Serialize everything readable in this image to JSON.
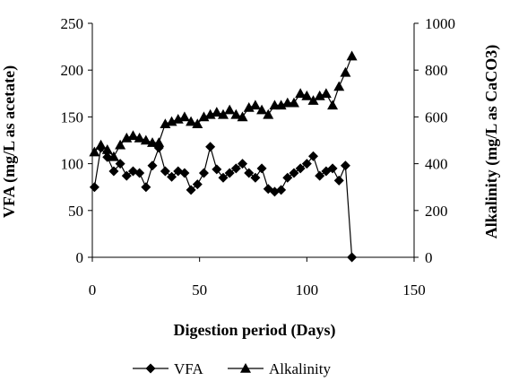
{
  "chart_data": {
    "type": "line",
    "xlabel": "Digestion period (Days)",
    "ylabel_left": "VFA (mg/L as acetate)",
    "ylabel_right": "Alkalinity (mg/L as CaCO3)",
    "xlim": [
      0,
      150
    ],
    "ylim_left": [
      0,
      250
    ],
    "ylim_right": [
      0,
      1000
    ],
    "x_ticks": [
      0,
      50,
      100,
      150
    ],
    "y_left_ticks": [
      0,
      50,
      100,
      150,
      200,
      250
    ],
    "y_right_ticks": [
      0,
      200,
      400,
      600,
      800,
      1000
    ],
    "grid": false,
    "legend_position": "bottom",
    "series": [
      {
        "name": "VFA",
        "axis": "left",
        "marker": "diamond",
        "x": [
          1,
          4,
          7,
          10,
          13,
          16,
          19,
          22,
          25,
          28,
          31,
          34,
          37,
          40,
          43,
          46,
          49,
          52,
          55,
          58,
          61,
          64,
          67,
          70,
          73,
          76,
          79,
          82,
          85,
          88,
          91,
          94,
          97,
          100,
          103,
          106,
          109,
          112,
          115,
          118,
          121
        ],
        "y": [
          75,
          117,
          107,
          92,
          100,
          87,
          92,
          90,
          75,
          98,
          117,
          92,
          86,
          92,
          90,
          72,
          78,
          90,
          118,
          94,
          85,
          90,
          95,
          100,
          90,
          85,
          95,
          73,
          70,
          72,
          85,
          90,
          95,
          100,
          108,
          87,
          92,
          95,
          82,
          98,
          0
        ]
      },
      {
        "name": "Alkalinity",
        "axis": "right",
        "marker": "triangle",
        "x": [
          1,
          4,
          7,
          10,
          13,
          16,
          19,
          22,
          25,
          28,
          31,
          34,
          37,
          40,
          43,
          46,
          49,
          52,
          55,
          58,
          61,
          64,
          67,
          70,
          73,
          76,
          79,
          82,
          85,
          88,
          91,
          94,
          97,
          100,
          103,
          106,
          109,
          112,
          115,
          118,
          121
        ],
        "y": [
          450,
          480,
          460,
          430,
          480,
          510,
          520,
          510,
          500,
          490,
          490,
          570,
          580,
          590,
          600,
          580,
          570,
          600,
          610,
          620,
          610,
          630,
          610,
          600,
          640,
          650,
          630,
          610,
          650,
          650,
          660,
          660,
          700,
          690,
          670,
          690,
          700,
          650,
          730,
          790,
          860
        ]
      }
    ]
  }
}
